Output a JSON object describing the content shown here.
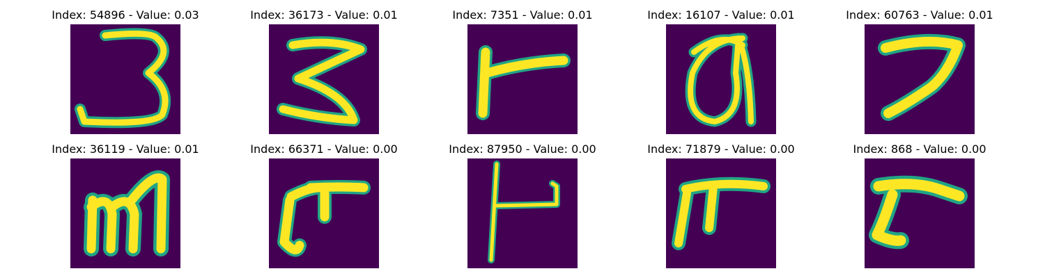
{
  "grid_colors": {
    "background": "#440154",
    "stroke": "#fde725",
    "edge": "#21a585"
  },
  "panels": [
    {
      "title": "Index: 54896 - Value: 0.03",
      "glyph": "3"
    },
    {
      "title": "Index: 36173 - Value: 0.01",
      "glyph": "3"
    },
    {
      "title": "Index: 7351 - Value: 0.01",
      "glyph": "r"
    },
    {
      "title": "Index: 16107 - Value: 0.01",
      "glyph": "a"
    },
    {
      "title": "Index: 60763 - Value: 0.01",
      "glyph": "7"
    },
    {
      "title": "Index: 36119 - Value: 0.01",
      "glyph": "m"
    },
    {
      "title": "Index: 66371 - Value: 0.00",
      "glyph": "r"
    },
    {
      "title": "Index: 87950 - Value: 0.00",
      "glyph": "r"
    },
    {
      "title": "Index: 71879 - Value: 0.00",
      "glyph": "r"
    },
    {
      "title": "Index: 868 - Value: 0.00",
      "glyph": "r"
    }
  ]
}
